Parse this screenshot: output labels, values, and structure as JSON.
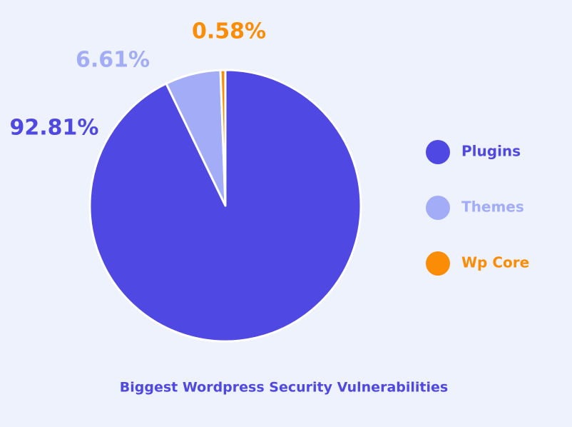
{
  "chart_data": {
    "type": "pie",
    "title": "Biggest Wordpress Security Vulnerabilities",
    "categories": [
      "Plugins",
      "Themes",
      "Wp Core"
    ],
    "values": [
      92.81,
      6.61,
      0.58
    ],
    "value_labels": [
      "92.81%",
      "6.61%",
      "0.58%"
    ],
    "colors": [
      "#4f48e2",
      "#a3acf7",
      "#fb8c05"
    ]
  }
}
